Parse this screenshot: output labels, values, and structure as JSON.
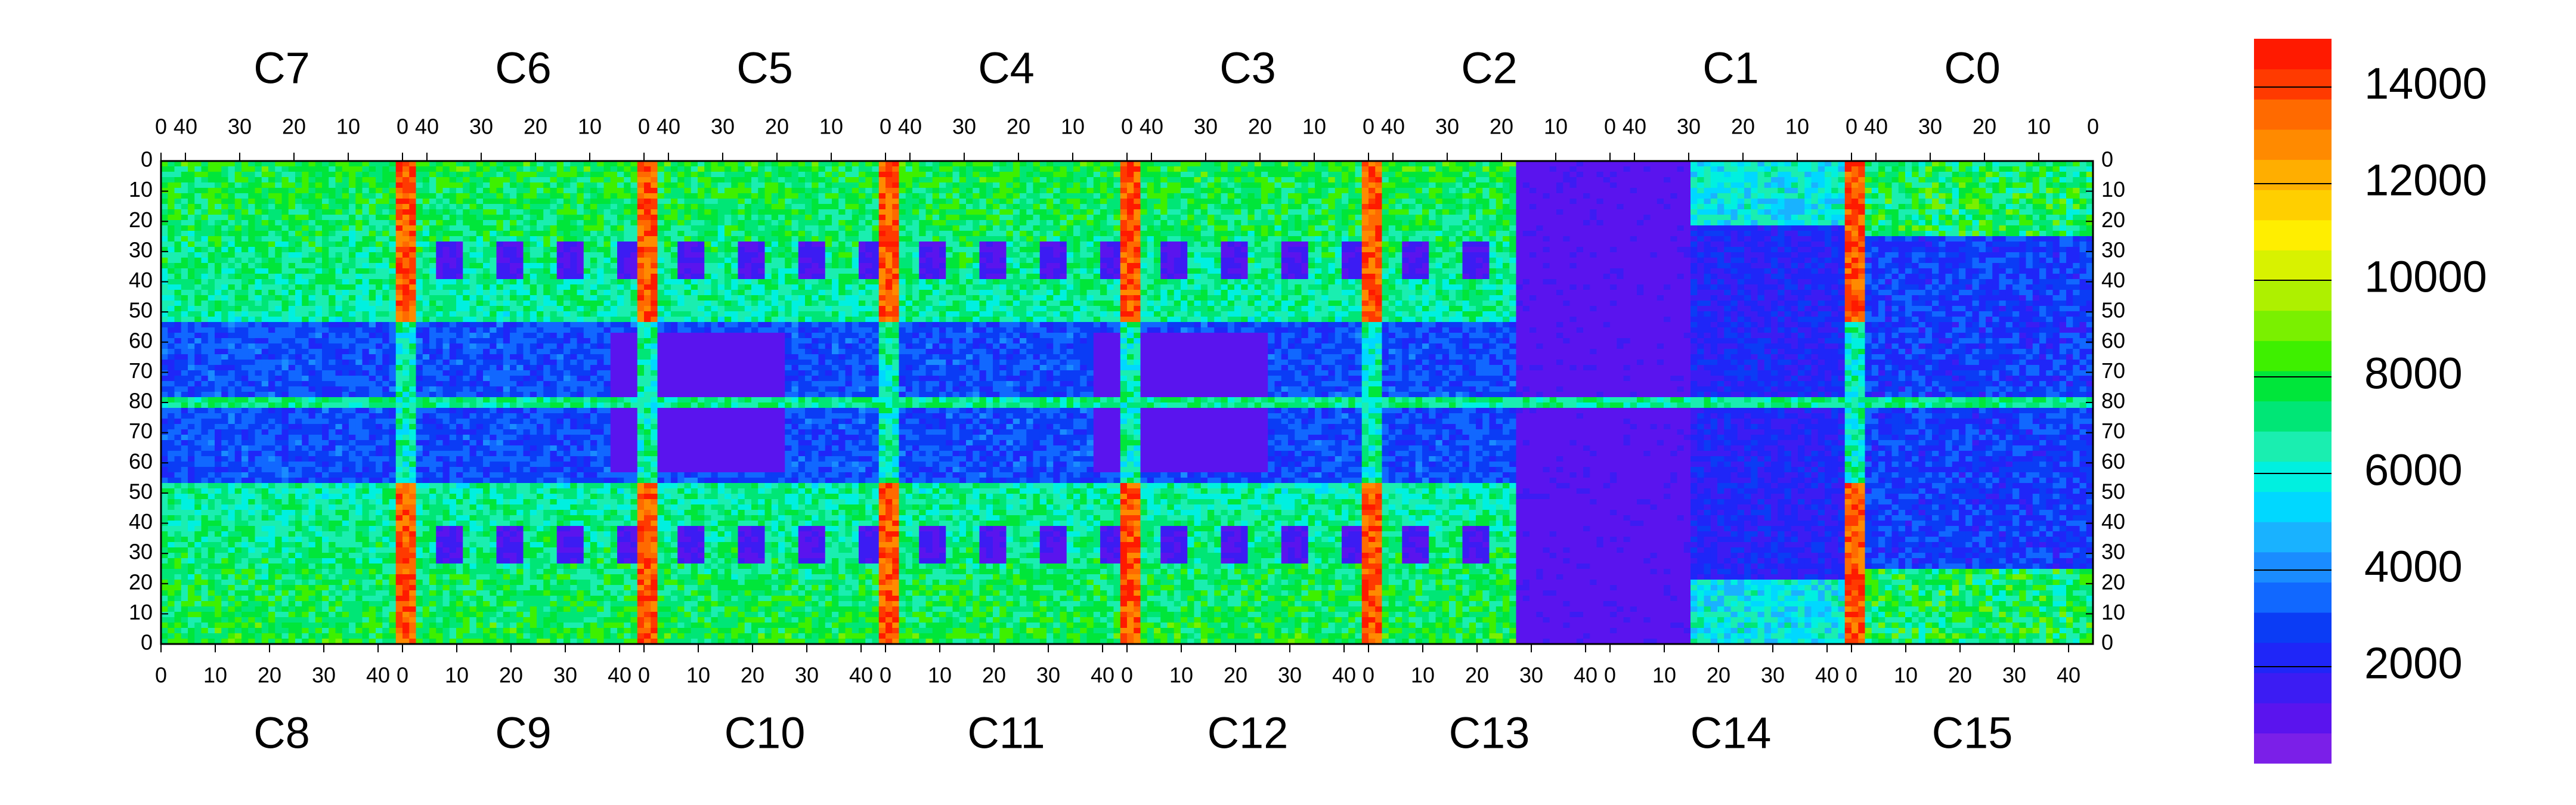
{
  "chart_data": {
    "type": "heatmap",
    "title": "",
    "top_columns": [
      "C7",
      "C6",
      "C5",
      "C4",
      "C3",
      "C2",
      "C1",
      "C0"
    ],
    "bottom_columns": [
      "C8",
      "C9",
      "C10",
      "C11",
      "C12",
      "C13",
      "C14",
      "C15"
    ],
    "top_axis_ticks": [
      "40",
      "30",
      "20",
      "10",
      "0"
    ],
    "bottom_axis_ticks": [
      "0",
      "10",
      "20",
      "30",
      "40"
    ],
    "top_axis_right_end_tick": "0",
    "bottom_axis_left_start_tick": "0",
    "row_ticks_top_half": [
      "0",
      "10",
      "20",
      "30",
      "40",
      "50",
      "60",
      "70",
      "80"
    ],
    "row_ticks_bottom_half": [
      "70",
      "60",
      "50",
      "40",
      "30",
      "20",
      "10",
      "0"
    ],
    "colorbar": {
      "min": 0,
      "max": 15000,
      "tick_values": [
        2000,
        4000,
        6000,
        8000,
        10000,
        12000,
        14000
      ],
      "tick_labels": [
        "2000",
        "4000",
        "6000",
        "8000",
        "10000",
        "12000",
        "14000"
      ],
      "colors": [
        "#7b1fe8",
        "#5a14ee",
        "#3c1cf3",
        "#1f26f8",
        "#0b3cf5",
        "#1168ff",
        "#1a8cff",
        "#19b2ff",
        "#00d8ff",
        "#00f0e0",
        "#1aeeb0",
        "#00e676",
        "#00e63a",
        "#3ef000",
        "#7af000",
        "#aef000",
        "#d8f200",
        "#ffee00",
        "#ffcf00",
        "#ffae00",
        "#ff8a00",
        "#ff6a00",
        "#ff3a00",
        "#ff1a00"
      ]
    },
    "structure": {
      "red_stripe_columns": [
        "C7/C6 boundary",
        "C6/C5 boundary",
        "C5/C4 boundary",
        "C4/C3 boundary",
        "C3/C2 boundary",
        "C1/C0 boundary"
      ],
      "low_region": "C2-C1 / C13-C14 central band is predominantly low (~1000)",
      "typical_range": [
        1000,
        9000
      ]
    }
  }
}
